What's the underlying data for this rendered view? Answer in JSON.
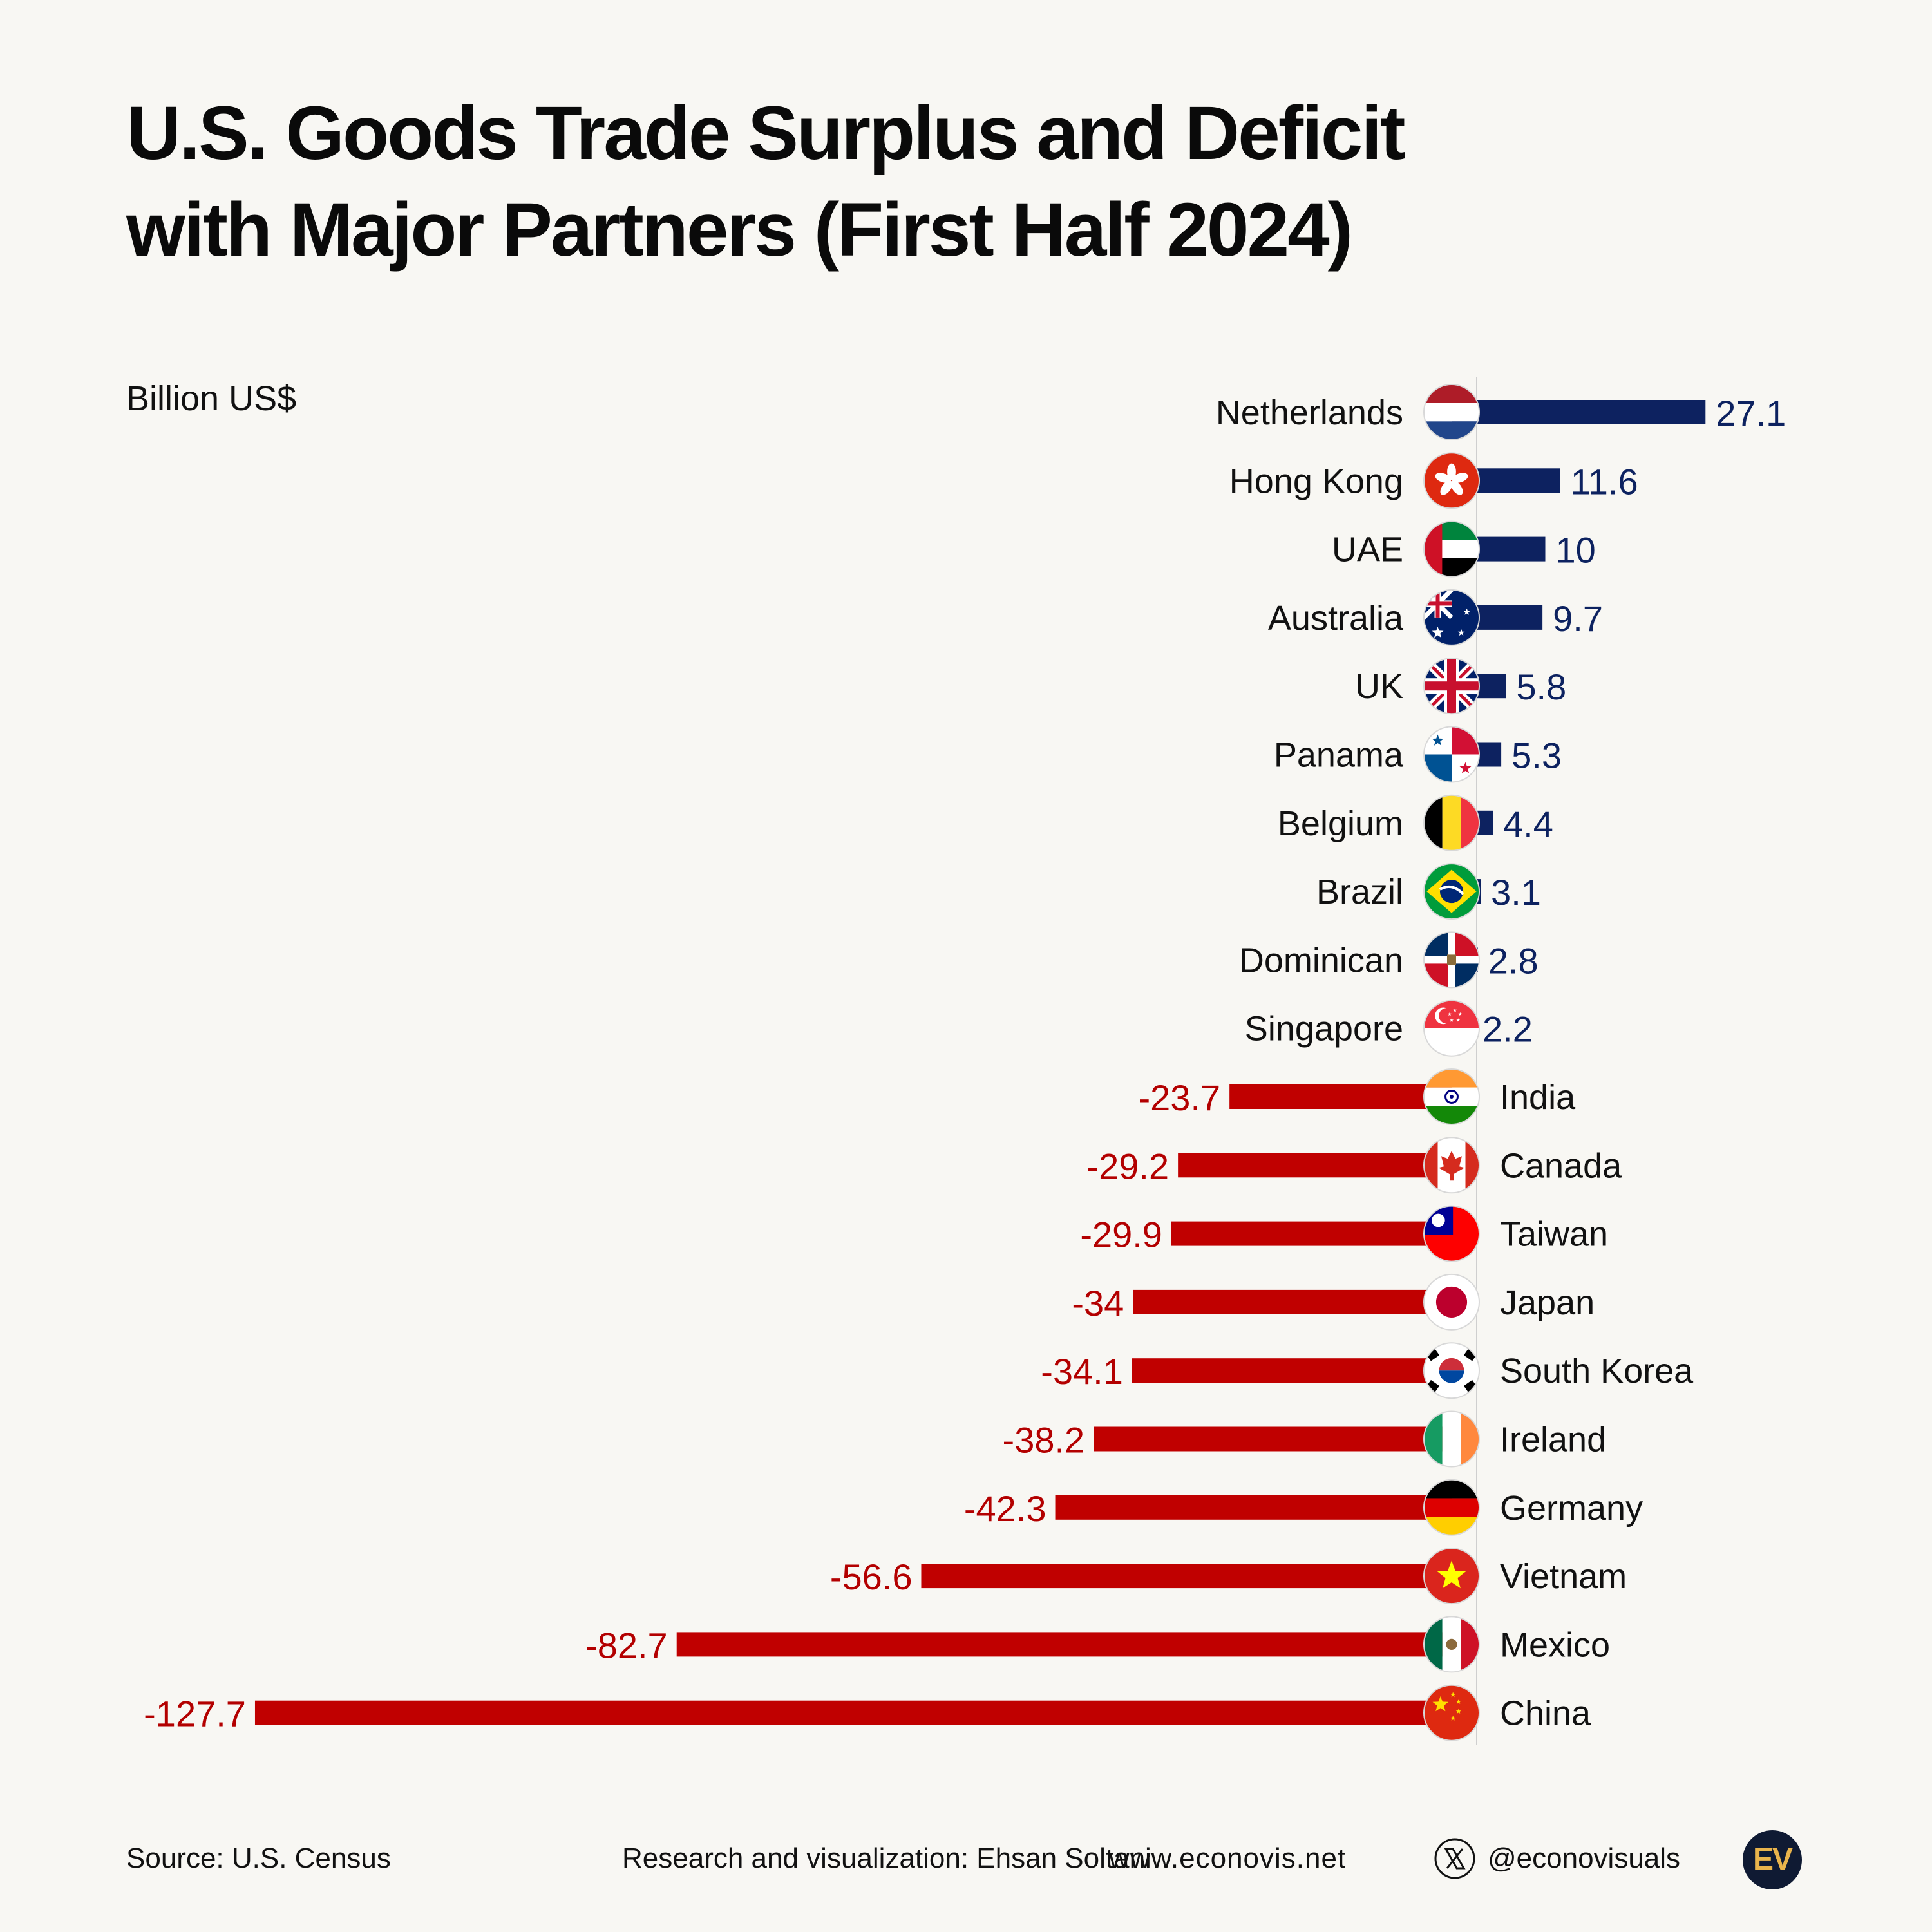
{
  "title_lines": [
    "U.S. Goods Trade Surplus and Deficit",
    "with Major Partners (First Half 2024)"
  ],
  "unit_label": "Billion US$",
  "colors": {
    "surplus": "#0d2260",
    "deficit": "#c00000",
    "surplus_label": "#0d2260",
    "deficit_label": "#b30000",
    "background": "#f8f7f3"
  },
  "chart_data": {
    "type": "bar",
    "orientation": "horizontal",
    "title": "U.S. Goods Trade Surplus and Deficit with Major Partners (First Half 2024)",
    "unit": "Billion US$",
    "categories": [
      "Netherlands",
      "Hong Kong",
      "UAE",
      "Australia",
      "UK",
      "Panama",
      "Belgium",
      "Brazil",
      "Dominican",
      "Singapore",
      "India",
      "Canada",
      "Taiwan",
      "Japan",
      "South Korea",
      "Ireland",
      "Germany",
      "Vietnam",
      "Mexico",
      "China"
    ],
    "values": [
      27.1,
      11.6,
      10,
      9.7,
      5.8,
      5.3,
      4.4,
      3.1,
      2.8,
      2.2,
      -23.7,
      -29.2,
      -29.9,
      -34,
      -34.1,
      -38.2,
      -42.3,
      -56.6,
      -82.7,
      -127.7
    ],
    "value_labels": [
      "27.1",
      "11.6",
      "10",
      "9.7",
      "5.8",
      "5.3",
      "4.4",
      "3.1",
      "2.8",
      "2.2",
      "-23.7",
      "-29.2",
      "-29.9",
      "-34",
      "-34.1",
      "-38.2",
      "-42.3",
      "-56.6",
      "-82.7",
      "-127.7"
    ],
    "flag_icons": [
      "netherlands-flag-icon",
      "hong-kong-flag-icon",
      "uae-flag-icon",
      "australia-flag-icon",
      "uk-flag-icon",
      "panama-flag-icon",
      "belgium-flag-icon",
      "brazil-flag-icon",
      "dominican-flag-icon",
      "singapore-flag-icon",
      "india-flag-icon",
      "canada-flag-icon",
      "taiwan-flag-icon",
      "japan-flag-icon",
      "south-korea-flag-icon",
      "ireland-flag-icon",
      "germany-flag-icon",
      "vietnam-flag-icon",
      "mexico-flag-icon",
      "china-flag-icon"
    ],
    "xlim": [
      -127.7,
      27.1
    ],
    "grid": false,
    "legend": "none"
  },
  "footer": {
    "source": "Source: U.S. Census",
    "credit": "Research and visualization: Ehsan Soltani",
    "website": "www.econovis.net",
    "handle": "@econovisuals",
    "logo_text": "EV"
  }
}
